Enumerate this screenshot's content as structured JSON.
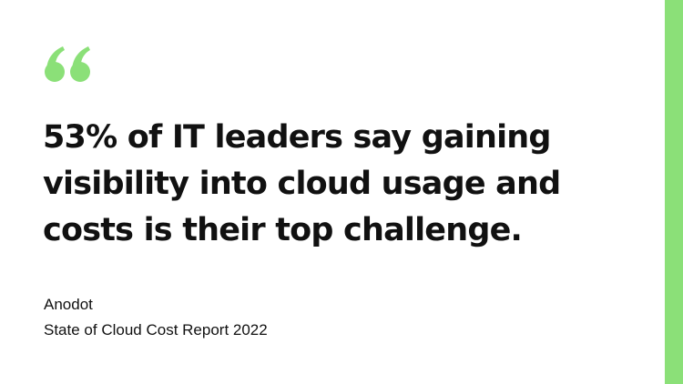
{
  "quote": {
    "line_1": "53% of IT leaders say gaining",
    "line_2": "visibility into cloud usage and",
    "line_3": "costs is their top challenge."
  },
  "attribution": {
    "author": "Anodot",
    "source": "State of Cloud Cost Report 2022"
  },
  "icons": {
    "quote_mark": "quote-open-icon"
  },
  "colors": {
    "accent": "#8be078",
    "text": "#111111",
    "background": "#ffffff"
  }
}
